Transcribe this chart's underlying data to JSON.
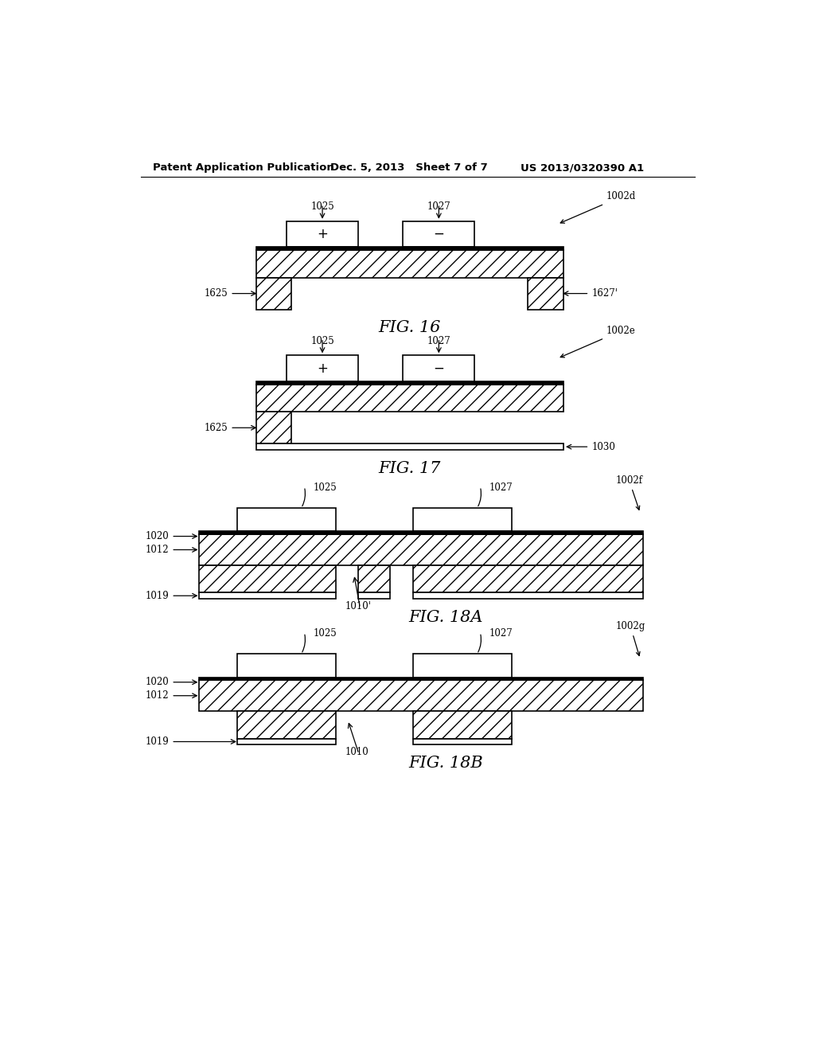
{
  "bg_color": "#ffffff",
  "header_left": "Patent Application Publication",
  "header_mid": "Dec. 5, 2013   Sheet 7 of 7",
  "header_right": "US 2013/0320390 A1"
}
